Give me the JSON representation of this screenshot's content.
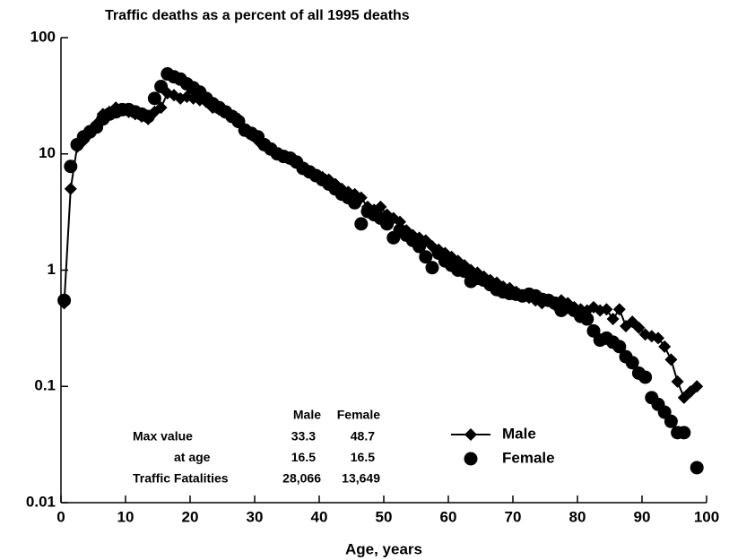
{
  "chart_data": {
    "type": "line",
    "title": "Traffic deaths as a percent of all 1995 deaths",
    "xlabel": "Age, years",
    "x": [
      0.5,
      1.5,
      2.5,
      3.5,
      4.5,
      5.5,
      6.5,
      7.5,
      8.5,
      9.5,
      10.5,
      11.5,
      12.5,
      13.5,
      14.5,
      15.5,
      16.5,
      17.5,
      18.5,
      19.5,
      20.5,
      21.5,
      22.5,
      23.5,
      24.5,
      25.5,
      26.5,
      27.5,
      28.5,
      29.5,
      30.5,
      31.5,
      32.5,
      33.5,
      34.5,
      35.5,
      36.5,
      37.5,
      38.5,
      39.5,
      40.5,
      41.5,
      42.5,
      43.5,
      44.5,
      45.5,
      46.5,
      47.5,
      48.5,
      49.5,
      50.5,
      51.5,
      52.5,
      53.5,
      54.5,
      55.5,
      56.5,
      57.5,
      58.5,
      59.5,
      60.5,
      61.5,
      62.5,
      63.5,
      64.5,
      65.5,
      66.5,
      67.5,
      68.5,
      69.5,
      70.5,
      71.5,
      72.5,
      73.5,
      74.5,
      75.5,
      76.5,
      77.5,
      78.5,
      79.5,
      80.5,
      81.5,
      82.5,
      83.5,
      84.5,
      85.5,
      86.5,
      87.5,
      88.5,
      89.5,
      90.5,
      91.5,
      92.5,
      93.5,
      94.5,
      95.5,
      96.5,
      97.5,
      98.5
    ],
    "series": [
      {
        "name": "Male",
        "color": "#000000",
        "marker": "diamond",
        "line": true,
        "values": [
          0.52,
          5,
          11.5,
          13,
          15,
          18,
          22,
          23,
          25,
          24,
          23,
          22,
          21,
          20,
          23,
          25,
          33.3,
          32,
          30,
          31,
          30,
          29,
          28,
          25,
          24,
          23,
          21,
          20,
          16,
          14.5,
          13,
          12,
          11,
          10,
          9.6,
          9,
          8.5,
          7.5,
          7,
          6.5,
          6.3,
          6,
          5.5,
          5,
          4.7,
          4.5,
          4.2,
          3.5,
          3.3,
          3.5,
          3,
          2.8,
          2.6,
          2.2,
          2,
          1.9,
          1.8,
          1.6,
          1.5,
          1.4,
          1.3,
          1.2,
          1.1,
          1,
          0.95,
          0.88,
          0.82,
          0.78,
          0.72,
          0.7,
          0.65,
          0.6,
          0.58,
          0.55,
          0.52,
          0.55,
          0.5,
          0.55,
          0.52,
          0.48,
          0.46,
          0.45,
          0.48,
          0.45,
          0.46,
          0.38,
          0.46,
          0.33,
          0.36,
          0.32,
          0.28,
          0.27,
          0.26,
          0.22,
          0.17,
          0.11,
          0.08,
          0.09,
          0.1
        ]
      },
      {
        "name": "Female",
        "color": "#000000",
        "marker": "circle",
        "line": false,
        "values": [
          0.55,
          7.8,
          12,
          14,
          15.5,
          17,
          20,
          22,
          23,
          24,
          24,
          23,
          22,
          21,
          30,
          38,
          48.7,
          46,
          44,
          40,
          37,
          34,
          30,
          27,
          25,
          23,
          21,
          19,
          16,
          15,
          14,
          12,
          11,
          10,
          9.5,
          9.2,
          8.5,
          7.5,
          7,
          6.5,
          6,
          5.5,
          5,
          4.5,
          4.2,
          3.8,
          2.5,
          3.2,
          3,
          2.8,
          2.5,
          1.9,
          2.2,
          2,
          1.8,
          1.6,
          1.3,
          1.05,
          1.4,
          1.2,
          1.1,
          1,
          0.98,
          0.8,
          0.85,
          0.82,
          0.75,
          0.68,
          0.65,
          0.63,
          0.62,
          0.6,
          0.62,
          0.6,
          0.56,
          0.55,
          0.52,
          0.45,
          0.48,
          0.45,
          0.4,
          0.38,
          0.3,
          0.25,
          0.26,
          0.24,
          0.22,
          0.18,
          0.16,
          0.13,
          0.12,
          0.08,
          0.07,
          0.06,
          0.05,
          0.04,
          0.04,
          null,
          0.02
        ]
      }
    ],
    "xlim": [
      0,
      100
    ],
    "ylim": [
      0.01,
      100
    ],
    "xticks": [
      0,
      10,
      20,
      30,
      40,
      50,
      60,
      70,
      80,
      90,
      100
    ],
    "yticks": [
      0.01,
      0.1,
      1,
      10,
      100
    ],
    "log_y": true,
    "legend": "lower right",
    "annotation_table": {
      "header": [
        "Male",
        "Female"
      ],
      "rows": [
        {
          "label": "Max value",
          "values": [
            "33.3",
            "48.7"
          ]
        },
        {
          "label": "at age",
          "values": [
            "16.5",
            "16.5"
          ]
        },
        {
          "label": "Traffic Fatalities",
          "values": [
            "28,066",
            "13,649"
          ]
        }
      ]
    }
  }
}
